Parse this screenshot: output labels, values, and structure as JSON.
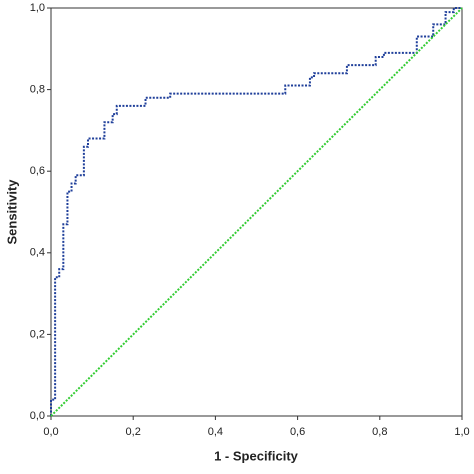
{
  "chart_data": {
    "type": "line",
    "xlabel": "1 - Specificity",
    "ylabel": "Sensitivity",
    "xlim": [
      0,
      1
    ],
    "ylim": [
      0,
      1
    ],
    "xticks": [
      {
        "value": 0,
        "label": "0,0"
      },
      {
        "value": 0.2,
        "label": "0,2"
      },
      {
        "value": 0.4,
        "label": "0,4"
      },
      {
        "value": 0.6,
        "label": "0,6"
      },
      {
        "value": 0.8,
        "label": "0,8"
      },
      {
        "value": 1,
        "label": "1,0"
      }
    ],
    "yticks": [
      {
        "value": 0,
        "label": "0,0"
      },
      {
        "value": 0.2,
        "label": "0,2"
      },
      {
        "value": 0.4,
        "label": "0,4"
      },
      {
        "value": 0.6,
        "label": "0,6"
      },
      {
        "value": 0.8,
        "label": "0,8"
      },
      {
        "value": 1,
        "label": "1,0"
      }
    ],
    "series": [
      {
        "color": "#1f3f9a",
        "x": [
          0,
          0,
          0.01,
          0.01,
          0.02,
          0.02,
          0.03,
          0.03,
          0.04,
          0.04,
          0.05,
          0.05,
          0.06,
          0.06,
          0.08,
          0.08,
          0.09,
          0.09,
          0.13,
          0.13,
          0.15,
          0.15,
          0.16,
          0.16,
          0.23,
          0.23,
          0.29,
          0.29,
          0.57,
          0.57,
          0.63,
          0.63,
          0.64,
          0.64,
          0.72,
          0.72,
          0.79,
          0.79,
          0.81,
          0.81,
          0.89,
          0.89,
          0.93,
          0.93,
          0.96,
          0.96,
          0.98,
          0.98,
          1
        ],
        "values": [
          0,
          0.04,
          0.04,
          0.34,
          0.34,
          0.36,
          0.36,
          0.47,
          0.47,
          0.55,
          0.55,
          0.57,
          0.57,
          0.59,
          0.59,
          0.66,
          0.66,
          0.68,
          0.68,
          0.72,
          0.72,
          0.74,
          0.74,
          0.76,
          0.76,
          0.78,
          0.78,
          0.79,
          0.79,
          0.81,
          0.81,
          0.83,
          0.83,
          0.84,
          0.84,
          0.86,
          0.86,
          0.88,
          0.88,
          0.89,
          0.89,
          0.93,
          0.93,
          0.96,
          0.96,
          0.99,
          0.99,
          1,
          1
        ]
      },
      {
        "color": "#33cc33",
        "x": [
          0,
          1
        ],
        "values": [
          0,
          1
        ]
      }
    ]
  }
}
